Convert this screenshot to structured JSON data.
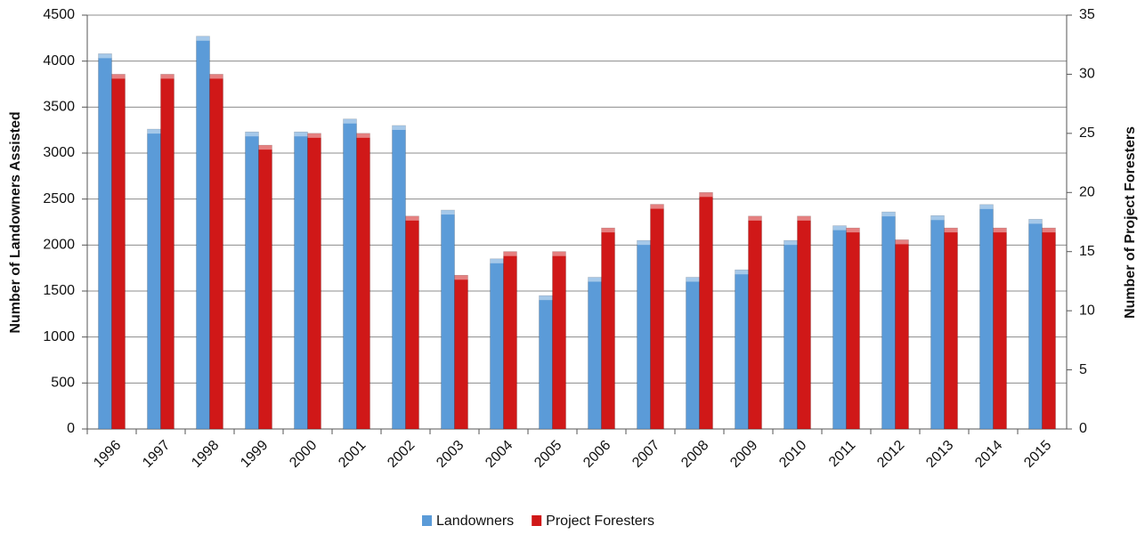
{
  "chart_data": {
    "type": "bar",
    "categories": [
      "1996",
      "1997",
      "1998",
      "1999",
      "2000",
      "2001",
      "2002",
      "2003",
      "2004",
      "2005",
      "2006",
      "2007",
      "2008",
      "2009",
      "2010",
      "2011",
      "2012",
      "2013",
      "2014",
      "2015"
    ],
    "series": [
      {
        "name": "Landowners",
        "color": "#5b9bd8",
        "values": [
          4080,
          3260,
          4270,
          3230,
          3230,
          3370,
          3300,
          2380,
          1850,
          1450,
          1650,
          2050,
          1650,
          1730,
          2050,
          2210,
          2360,
          2320,
          2440,
          2280
        ]
      },
      {
        "name": "Project Foresters",
        "color": "#d01818",
        "axis": "y2",
        "values": [
          30,
          30,
          30,
          24,
          25,
          25,
          18,
          13,
          15,
          15,
          17,
          19,
          20,
          18,
          18,
          17,
          16,
          17,
          17,
          17
        ]
      }
    ],
    "ylabel": "Number of Landowners Assisted",
    "y2label": "Number of Project Foresters",
    "ylim": [
      0,
      4500
    ],
    "yticks": [
      0,
      500,
      1000,
      1500,
      2000,
      2500,
      3000,
      3500,
      4000,
      4500
    ],
    "y2lim": [
      0,
      35
    ],
    "y2ticks": [
      0,
      5,
      10,
      15,
      20,
      25,
      30,
      35
    ],
    "grid": true,
    "legend": "bottom"
  }
}
